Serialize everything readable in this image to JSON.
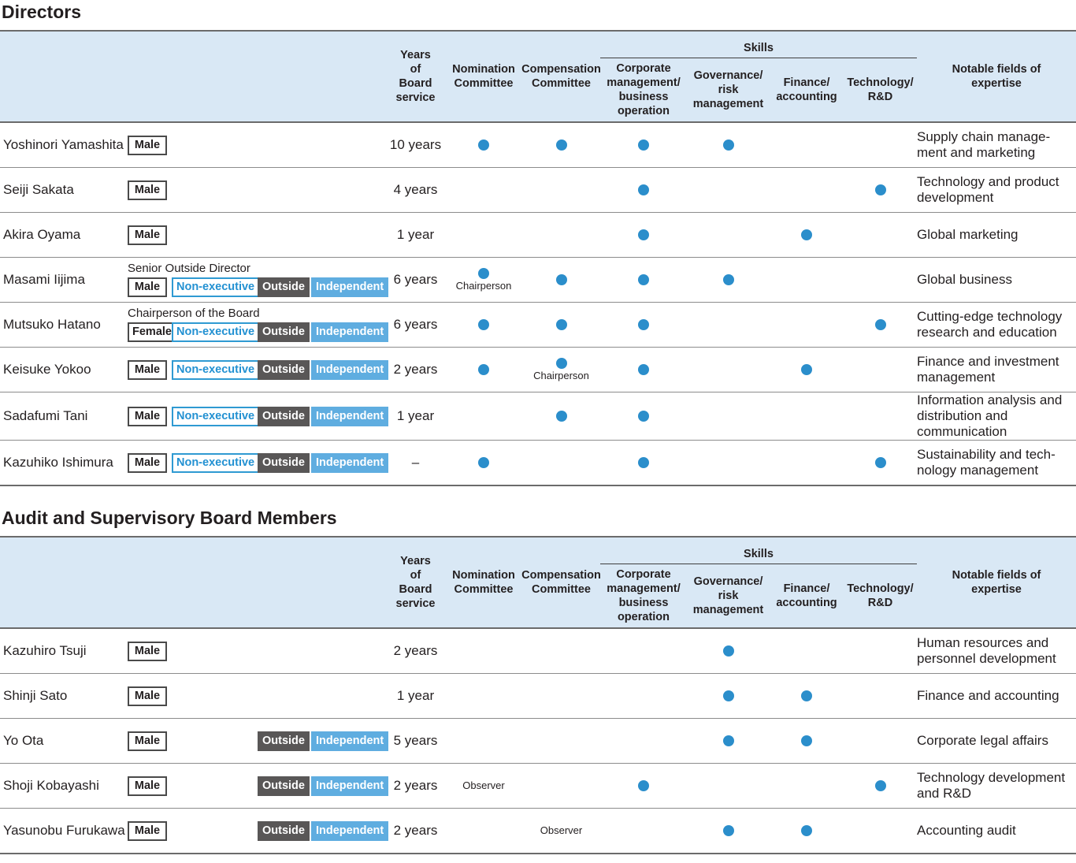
{
  "colors": {
    "header_background": "#d9e8f5",
    "dot_blue": "#2b8ecb",
    "outside_badge_gray": "#595757",
    "independent_badge_blue": "#5fade0",
    "non_executive_blue": "#2391d2",
    "text": "#231f20"
  },
  "badge_labels": {
    "non_executive": "Non-executive",
    "outside": "Outside",
    "independent": "Independent"
  },
  "sections": [
    {
      "title": "Directors",
      "header": {
        "years": "Years\nof\nBoard\nservice",
        "nomination": "Nomination\nCommittee",
        "compensation": "Compensation\nCommittee",
        "skills_group": "Skills",
        "skill_columns": [
          "Corporate\nmanagement/\nbusiness\noperation",
          "Governance/\nrisk\nmanagement",
          "Finance/\naccounting",
          "Technology/\nR&D"
        ],
        "expertise": "Notable fields of\nexpertise"
      },
      "rows": [
        {
          "name": "Yoshinori Yamashita",
          "title": null,
          "badges": {
            "gender": "Male",
            "non_executive": false,
            "outside": false,
            "independent": false
          },
          "years": "10 years",
          "nomination": {
            "dot": true,
            "label": null
          },
          "compensation": {
            "dot": true,
            "label": null
          },
          "skills": [
            true,
            true,
            false,
            false
          ],
          "expertise": "Supply chain manage-\nment and marketing"
        },
        {
          "name": "Seiji Sakata",
          "title": null,
          "badges": {
            "gender": "Male",
            "non_executive": false,
            "outside": false,
            "independent": false
          },
          "years": "4 years",
          "nomination": null,
          "compensation": null,
          "skills": [
            true,
            false,
            false,
            true
          ],
          "expertise": "Technology and product\ndevelopment"
        },
        {
          "name": "Akira Oyama",
          "title": null,
          "badges": {
            "gender": "Male",
            "non_executive": false,
            "outside": false,
            "independent": false
          },
          "years": "1 year",
          "nomination": null,
          "compensation": null,
          "skills": [
            true,
            false,
            true,
            false
          ],
          "expertise": "Global marketing"
        },
        {
          "name": "Masami Iijima",
          "title": "Senior Outside Director",
          "badges": {
            "gender": "Male",
            "non_executive": true,
            "outside": true,
            "independent": true
          },
          "years": "6 years",
          "nomination": {
            "dot": true,
            "label": "Chairperson"
          },
          "compensation": {
            "dot": true,
            "label": null
          },
          "skills": [
            true,
            true,
            false,
            false
          ],
          "expertise": "Global business"
        },
        {
          "name": "Mutsuko Hatano",
          "title": "Chairperson of the Board",
          "badges": {
            "gender": "Female",
            "non_executive": true,
            "outside": true,
            "independent": true
          },
          "years": "6 years",
          "nomination": {
            "dot": true,
            "label": null
          },
          "compensation": {
            "dot": true,
            "label": null
          },
          "skills": [
            true,
            false,
            false,
            true
          ],
          "expertise": "Cutting-edge technology\nresearch and education"
        },
        {
          "name": "Keisuke Yokoo",
          "title": null,
          "badges": {
            "gender": "Male",
            "non_executive": true,
            "outside": true,
            "independent": true
          },
          "years": "2 years",
          "nomination": {
            "dot": true,
            "label": null
          },
          "compensation": {
            "dot": true,
            "label": "Chairperson"
          },
          "skills": [
            true,
            false,
            true,
            false
          ],
          "expertise": "Finance and investment\nmanagement"
        },
        {
          "name": "Sadafumi Tani",
          "title": null,
          "badges": {
            "gender": "Male",
            "non_executive": true,
            "outside": true,
            "independent": true
          },
          "years": "1 year",
          "nomination": null,
          "compensation": {
            "dot": true,
            "label": null
          },
          "skills": [
            true,
            false,
            false,
            false
          ],
          "expertise": "Information analysis and\ndistribution and\ncommunication"
        },
        {
          "name": "Kazuhiko Ishimura",
          "title": null,
          "badges": {
            "gender": "Male",
            "non_executive": true,
            "outside": true,
            "independent": true
          },
          "years": "–",
          "nomination": {
            "dot": true,
            "label": null
          },
          "compensation": null,
          "skills": [
            true,
            false,
            false,
            true
          ],
          "expertise": "Sustainability and tech-\nnology management"
        }
      ]
    },
    {
      "title": "Audit and Supervisory Board Members",
      "header": {
        "years": "Years\nof\nBoard\nservice",
        "nomination": "Nomination\nCommittee",
        "compensation": "Compensation\nCommittee",
        "skills_group": "Skills",
        "skill_columns": [
          "Corporate\nmanagement/\nbusiness\noperation",
          "Governance/\nrisk\nmanagement",
          "Finance/\naccounting",
          "Technology/\nR&D"
        ],
        "expertise": "Notable fields of\nexpertise"
      },
      "rows": [
        {
          "name": "Kazuhiro Tsuji",
          "title": null,
          "badges": {
            "gender": "Male",
            "non_executive": false,
            "outside": false,
            "independent": false
          },
          "years": "2 years",
          "nomination": null,
          "compensation": null,
          "skills": [
            false,
            true,
            false,
            false
          ],
          "expertise": "Human resources and\npersonnel development"
        },
        {
          "name": "Shinji Sato",
          "title": null,
          "badges": {
            "gender": "Male",
            "non_executive": false,
            "outside": false,
            "independent": false
          },
          "years": "1 year",
          "nomination": null,
          "compensation": null,
          "skills": [
            false,
            true,
            true,
            false
          ],
          "expertise": "Finance and accounting"
        },
        {
          "name": "Yo Ota",
          "title": null,
          "badges": {
            "gender": "Male",
            "non_executive": false,
            "outside": true,
            "independent": true
          },
          "years": "5 years",
          "nomination": null,
          "compensation": null,
          "skills": [
            false,
            true,
            true,
            false
          ],
          "expertise": "Corporate legal affairs"
        },
        {
          "name": "Shoji Kobayashi",
          "title": null,
          "badges": {
            "gender": "Male",
            "non_executive": false,
            "outside": true,
            "independent": true
          },
          "years": "2 years",
          "nomination": {
            "dot": false,
            "label": "Observer"
          },
          "compensation": null,
          "skills": [
            true,
            false,
            false,
            true
          ],
          "expertise": "Technology development\nand R&D"
        },
        {
          "name": "Yasunobu Furukawa",
          "title": null,
          "badges": {
            "gender": "Male",
            "non_executive": false,
            "outside": true,
            "independent": true
          },
          "years": "2 years",
          "nomination": null,
          "compensation": {
            "dot": false,
            "label": "Observer"
          },
          "skills": [
            false,
            true,
            true,
            false
          ],
          "expertise": "Accounting audit"
        }
      ]
    }
  ]
}
